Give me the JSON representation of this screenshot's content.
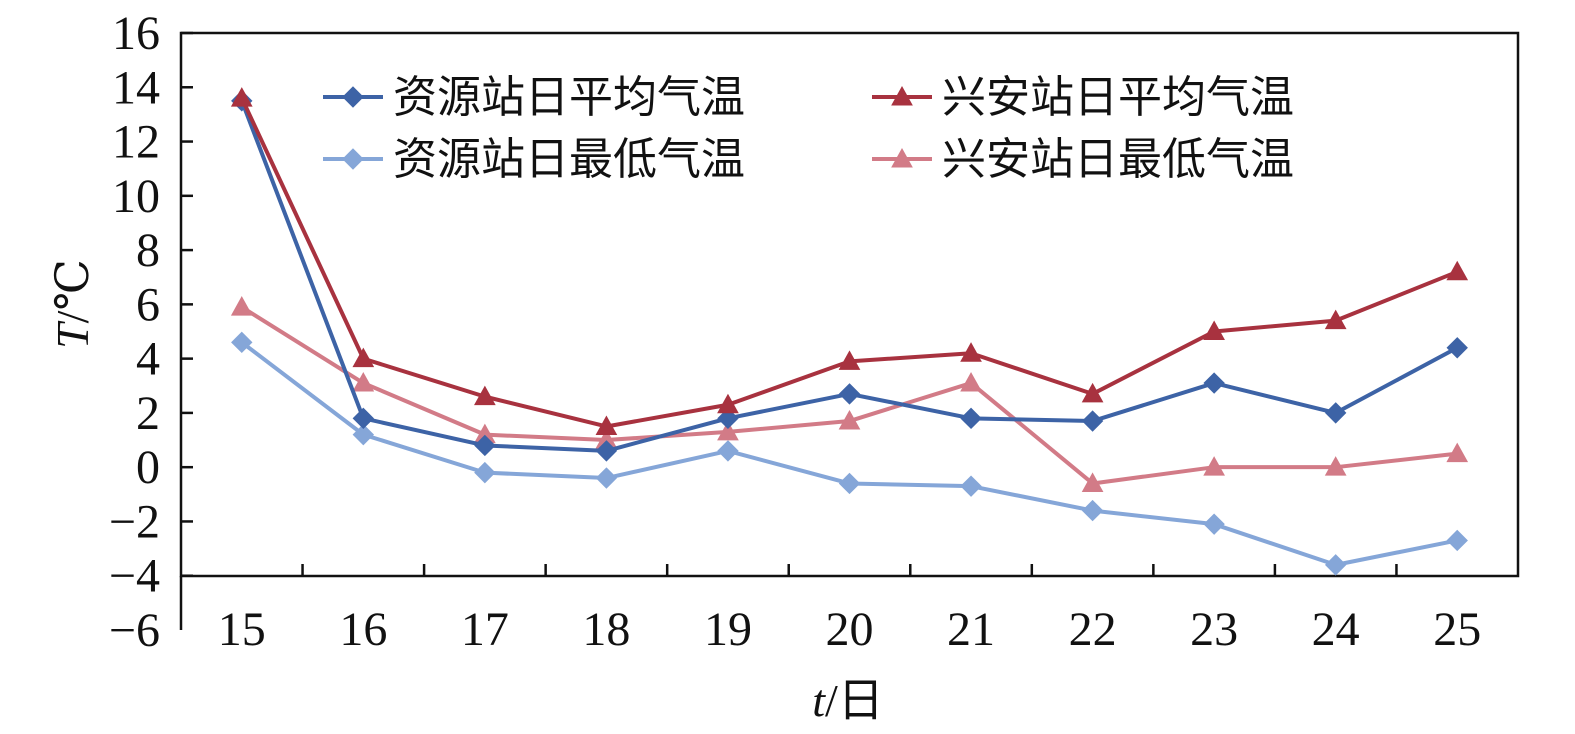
{
  "chart_data": {
    "type": "line",
    "xlabel": "t/日",
    "ylabel": "T/℃",
    "xlabel_parts": {
      "var": "t",
      "unit": "/日"
    },
    "ylabel_parts": {
      "var": "T",
      "unit": "/℃"
    },
    "x": [
      15,
      16,
      17,
      18,
      19,
      20,
      21,
      22,
      23,
      24,
      25
    ],
    "xlim": [
      14.5,
      25.5
    ],
    "ylim": [
      -6,
      16
    ],
    "ylim_plot_bottom": -4,
    "yticks": [
      16,
      14,
      12,
      10,
      8,
      6,
      4,
      2,
      0,
      -2,
      -4,
      -6
    ],
    "ytick_labels": [
      "16",
      "14",
      "12",
      "10",
      "8",
      "6",
      "4",
      "2",
      "0",
      "−2",
      "−4",
      "−6"
    ],
    "xtick_labels": [
      "15",
      "16",
      "17",
      "18",
      "19",
      "20",
      "21",
      "22",
      "23",
      "24",
      "25"
    ],
    "grid": false,
    "legend_position": "top-center",
    "series": [
      {
        "name": "资源站日平均气温",
        "marker": "diamond",
        "color": "#3d63a6",
        "values": [
          13.5,
          1.8,
          0.8,
          0.6,
          1.8,
          2.7,
          1.8,
          1.7,
          3.1,
          2.0,
          4.4
        ]
      },
      {
        "name": "兴安站日平均气温",
        "marker": "triangle",
        "color": "#a8323f",
        "values": [
          13.6,
          4.0,
          2.6,
          1.5,
          2.3,
          3.9,
          4.2,
          2.7,
          5.0,
          5.4,
          7.2
        ]
      },
      {
        "name": "资源站日最低气温",
        "marker": "diamond",
        "color": "#85a6d8",
        "values": [
          4.6,
          1.2,
          -0.2,
          -0.4,
          0.6,
          -0.6,
          -0.7,
          -1.6,
          -2.1,
          -3.6,
          -2.7
        ]
      },
      {
        "name": "兴安站日最低气温",
        "marker": "triangle",
        "color": "#d27b87",
        "values": [
          5.9,
          3.1,
          1.2,
          1.0,
          1.3,
          1.7,
          3.1,
          -0.6,
          0.0,
          0.0,
          0.5
        ]
      }
    ]
  }
}
